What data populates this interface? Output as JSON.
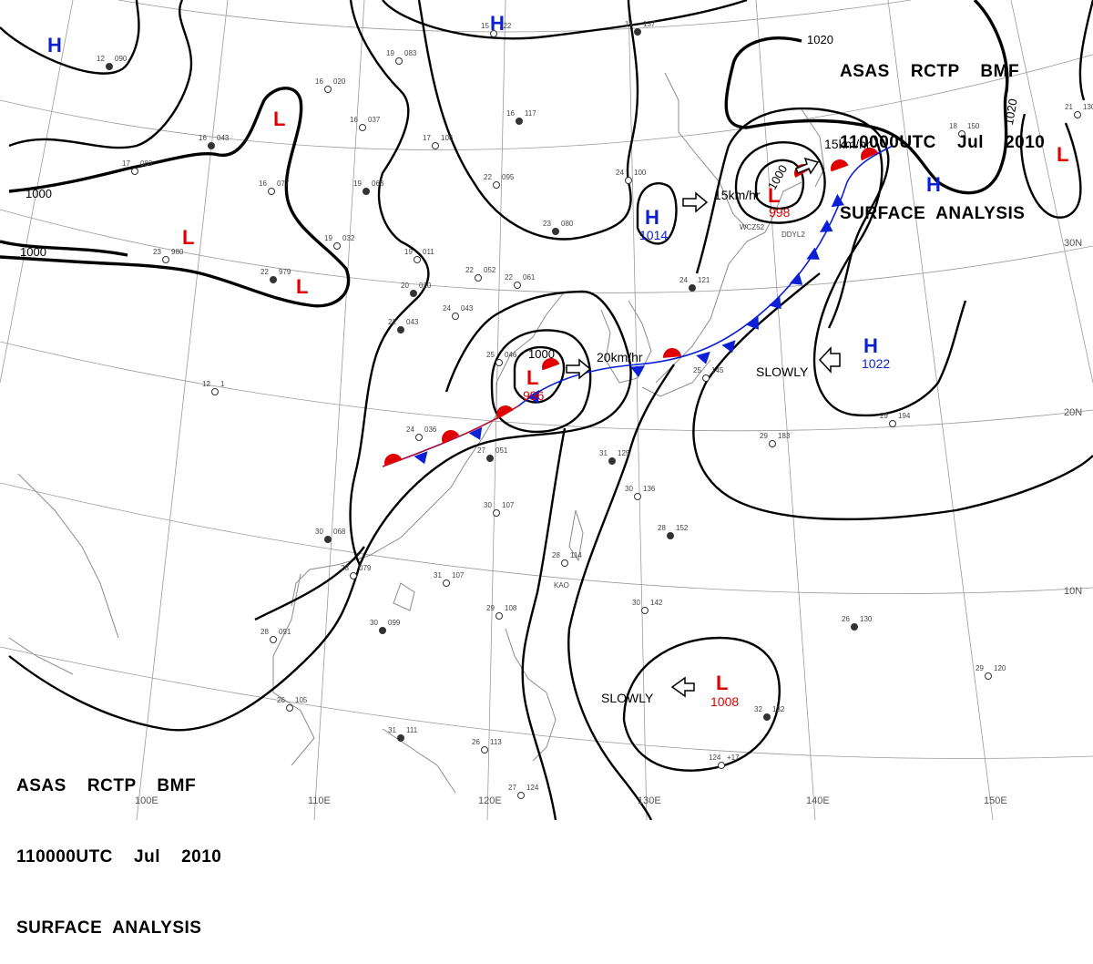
{
  "header_top": {
    "line1": "ASAS    RCTP    BMF",
    "line2": "110000UTC    Jul    2010",
    "line3": "SURFACE  ANALYSIS"
  },
  "header_bottom": {
    "line1": "ASAS    RCTP    BMF",
    "line2": "110000UTC    Jul    2010",
    "line3": "SURFACE  ANALYSIS"
  },
  "longitude_labels": [
    "110E",
    "120E",
    "130E",
    "140E",
    "150E"
  ],
  "latitude_labels": [
    "30N",
    "20N",
    "10N"
  ],
  "isobar_labels": [
    "1000",
    "1000",
    "1020",
    "1020",
    "1000",
    "1000"
  ],
  "systems": {
    "H_northwest": "H",
    "H_north_top": "H",
    "L_mongolia": "L",
    "L_central": "L",
    "L_west": "L",
    "H_korea": "H",
    "H_korea_pressure": "1014",
    "L_japan_sea": "L",
    "L_japan_sea_pressure": "998",
    "L_yangtze": "L",
    "L_yangtze_pressure": "996",
    "H_pacific": "H",
    "H_pacific_pressure": "1022",
    "H_far_east": "H",
    "L_far_east": "L",
    "L_philippine_sea": "L",
    "L_philippine_sea_pressure": "1008"
  },
  "motions": {
    "north_left": "15km/hr",
    "north_right": "15km/hr",
    "center": "20km/hr",
    "pacific": "SLOWLY",
    "south": "SLOWLY"
  },
  "colors": {
    "high": "#0a1fd6",
    "low": "#e00000",
    "cold_front": "#0a1fd6",
    "warm_front": "#e00000",
    "isobar": "#000000",
    "grid": "#9a9a9a"
  },
  "stations": [
    {
      "t": "12",
      "p": "090"
    },
    {
      "t": "16",
      "p": "020"
    },
    {
      "t": "19",
      "p": "083"
    },
    {
      "t": "16",
      "p": "043"
    },
    {
      "t": "17",
      "p": "083"
    },
    {
      "t": "16",
      "p": "077"
    },
    {
      "t": "19",
      "p": "068"
    },
    {
      "t": "16",
      "p": "037"
    },
    {
      "t": "17",
      "p": "106"
    },
    {
      "t": "16",
      "p": "117"
    },
    {
      "t": "22",
      "p": "095"
    },
    {
      "t": "23",
      "p": "980"
    },
    {
      "t": "22",
      "p": "979"
    },
    {
      "t": "19",
      "p": "032"
    },
    {
      "t": "19",
      "p": "011"
    },
    {
      "t": "20",
      "p": "020"
    },
    {
      "t": "22",
      "p": "052"
    },
    {
      "t": "22",
      "p": "061"
    },
    {
      "t": "23",
      "p": "080"
    },
    {
      "t": "24",
      "p": "100"
    },
    {
      "t": "24",
      "p": "043"
    },
    {
      "t": "22",
      "p": "043"
    },
    {
      "t": "12",
      "p": "1"
    },
    {
      "t": "24",
      "p": "036"
    },
    {
      "t": "27",
      "p": "051"
    },
    {
      "t": "25",
      "p": "046"
    },
    {
      "t": "25",
      "p": "145"
    },
    {
      "t": "24",
      "p": "121"
    },
    {
      "t": "29",
      "p": "183"
    },
    {
      "t": "29",
      "p": "194"
    },
    {
      "t": "31",
      "p": "125"
    },
    {
      "t": "30",
      "p": "136"
    },
    {
      "t": "30",
      "p": "107"
    },
    {
      "t": "30",
      "p": "068"
    },
    {
      "t": "28",
      "p": "079"
    },
    {
      "t": "31",
      "p": "107"
    },
    {
      "t": "28",
      "p": "152"
    },
    {
      "t": "28",
      "p": "114"
    },
    {
      "t": "28",
      "p": "091"
    },
    {
      "t": "30",
      "p": "099"
    },
    {
      "t": "29",
      "p": "108"
    },
    {
      "t": "30",
      "p": "142"
    },
    {
      "t": "26",
      "p": "130"
    },
    {
      "t": "29",
      "p": "120"
    },
    {
      "t": "26",
      "p": "105"
    },
    {
      "t": "31",
      "p": "111"
    },
    {
      "t": "26",
      "p": "113"
    },
    {
      "t": "27",
      "p": "124"
    },
    {
      "t": "32",
      "p": "132"
    },
    {
      "t": "124",
      "p": "+17"
    },
    {
      "t": "21",
      "p": "130"
    },
    {
      "t": "14",
      "p": "137"
    },
    {
      "t": "15",
      "p": "122"
    },
    {
      "t": "18",
      "p": "150"
    }
  ],
  "station_names": [
    "WCZ52",
    "DDYL2",
    "KAO"
  ]
}
